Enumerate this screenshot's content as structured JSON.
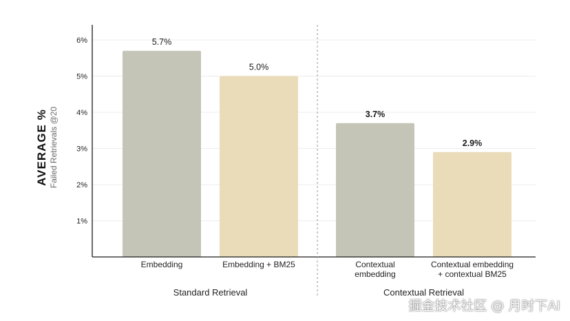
{
  "chart_data": {
    "type": "bar",
    "title": "",
    "ylabel": "AVERAGE %",
    "ylabel_sub": "Failed Retrievals @20",
    "ylim": [
      0,
      6.3
    ],
    "yticks": [
      1,
      2,
      3,
      4,
      5,
      6
    ],
    "ytick_labels": [
      "1%",
      "2%",
      "3%",
      "4%",
      "5%",
      "6%"
    ],
    "grid": true,
    "categories": [
      [
        "Embedding"
      ],
      [
        "Embedding + BM25"
      ],
      [
        "Contextual",
        "embedding"
      ],
      [
        "Contextual embedding",
        "+ contextual BM25"
      ]
    ],
    "values": [
      5.7,
      5.0,
      3.7,
      2.9
    ],
    "data_labels": [
      "5.7%",
      "5.0%",
      "3.7%",
      "2.9%"
    ],
    "colors": [
      "#c4c4b7",
      "#eadcb8",
      "#c4c4b7",
      "#eadcb8"
    ],
    "groups": [
      {
        "label": "Standard Retrieval",
        "bars": [
          0,
          1
        ]
      },
      {
        "label": "Contextual Retrieval",
        "bars": [
          2,
          3
        ]
      }
    ]
  },
  "watermark": "掘金技术社区 @ 月时下AI"
}
